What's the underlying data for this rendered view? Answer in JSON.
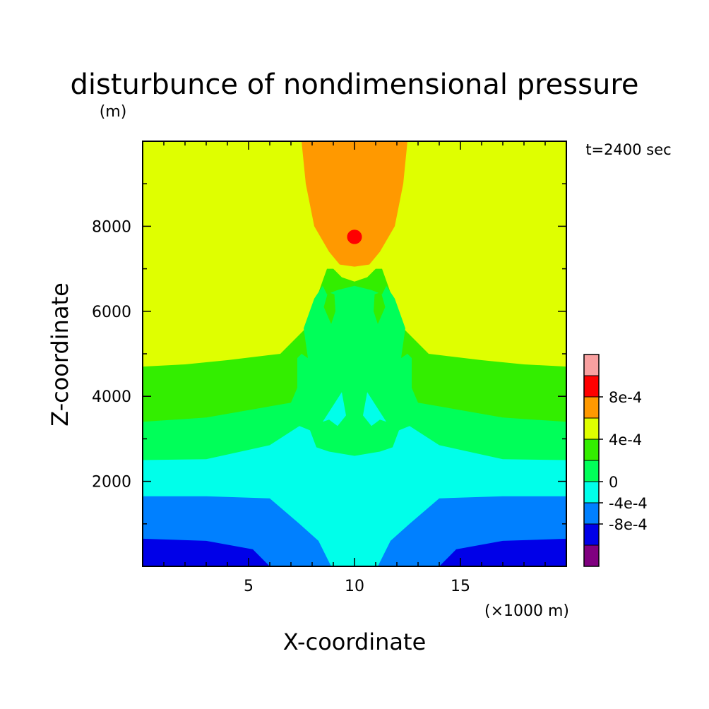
{
  "chart_data": {
    "type": "heatmap",
    "title": "disturbunce of nondimensional pressure",
    "y_unit": "(m)",
    "x_unit": "(×1000 m)",
    "xlabel": "X-coordinate",
    "ylabel": "Z-coordinate",
    "time_label": "t=2400 sec",
    "xlim": [
      0,
      20
    ],
    "ylim": [
      0,
      10000
    ],
    "x_ticks": [
      {
        "value": 5,
        "label": "5"
      },
      {
        "value": 10,
        "label": "10"
      },
      {
        "value": 15,
        "label": "15"
      }
    ],
    "y_ticks": [
      {
        "value": 2000,
        "label": "2000"
      },
      {
        "value": 4000,
        "label": "4000"
      },
      {
        "value": 6000,
        "label": "6000"
      },
      {
        "value": 8000,
        "label": "8000"
      }
    ],
    "colorbar": {
      "levels": [
        {
          "color": "#800080"
        },
        {
          "color": "#0000e8"
        },
        {
          "color": "#0080ff"
        },
        {
          "color": "#00ffea"
        },
        {
          "color": "#00ff59"
        },
        {
          "color": "#33ee00"
        },
        {
          "color": "#dfff00"
        },
        {
          "color": "#ff9900"
        },
        {
          "color": "#ff0000"
        },
        {
          "color": "#f9a0a0"
        }
      ],
      "ticks": [
        {
          "boundary": 2,
          "label": "-8e-4"
        },
        {
          "boundary": 3,
          "label": "-4e-4"
        },
        {
          "boundary": 4,
          "label": "0"
        },
        {
          "boundary": 6,
          "label": "4e-4"
        },
        {
          "boundary": 8,
          "label": "8e-4"
        }
      ]
    },
    "regions": [
      {
        "level": 6,
        "points": [
          [
            0,
            0
          ],
          [
            20,
            0
          ],
          [
            20,
            10000
          ],
          [
            0,
            10000
          ]
        ]
      },
      {
        "level": 7,
        "points": [
          [
            7.5,
            10000
          ],
          [
            12.5,
            10000
          ],
          [
            12.3,
            9000
          ],
          [
            11.9,
            8000
          ],
          [
            11.2,
            7400
          ],
          [
            10.7,
            7100
          ],
          [
            10,
            7050
          ],
          [
            9.3,
            7100
          ],
          [
            8.8,
            7400
          ],
          [
            8.1,
            8000
          ],
          [
            7.7,
            9000
          ]
        ]
      },
      {
        "level": 8,
        "cx": 10.0,
        "cy": 7750,
        "rx": 0.35,
        "ry": 170
      },
      {
        "level": 5,
        "points": [
          [
            0,
            0
          ],
          [
            20,
            0
          ],
          [
            20,
            4700
          ],
          [
            18,
            4750
          ],
          [
            16,
            4850
          ],
          [
            13.5,
            5000
          ],
          [
            12.3,
            5600
          ],
          [
            11.3,
            7000
          ],
          [
            11,
            7000
          ],
          [
            10.6,
            6800
          ],
          [
            10,
            6700
          ],
          [
            9.4,
            6800
          ],
          [
            9,
            7000
          ],
          [
            8.7,
            7000
          ],
          [
            7.7,
            5600
          ],
          [
            6.5,
            5000
          ],
          [
            4,
            4850
          ],
          [
            2,
            4750
          ],
          [
            0,
            4700
          ]
        ]
      },
      {
        "level": 4,
        "points": [
          [
            0,
            0
          ],
          [
            20,
            0
          ],
          [
            20,
            3400
          ],
          [
            17,
            3500
          ],
          [
            13,
            3850
          ],
          [
            12.7,
            4200
          ],
          [
            12.7,
            4900
          ],
          [
            12.5,
            5000
          ],
          [
            12.2,
            4900
          ],
          [
            12.4,
            5600
          ],
          [
            11.9,
            6300
          ],
          [
            11.5,
            6600
          ],
          [
            11.3,
            6400
          ],
          [
            10.8,
            6500
          ],
          [
            10,
            6600
          ],
          [
            9.2,
            6500
          ],
          [
            8.7,
            6400
          ],
          [
            8.5,
            6600
          ],
          [
            8.1,
            6300
          ],
          [
            7.6,
            5600
          ],
          [
            7.8,
            4900
          ],
          [
            7.5,
            5000
          ],
          [
            7.3,
            4900
          ],
          [
            7.3,
            4200
          ],
          [
            7,
            3850
          ],
          [
            3,
            3500
          ],
          [
            0,
            3400
          ]
        ]
      },
      {
        "level": 5,
        "points": [
          [
            8.55,
            6100
          ],
          [
            8.75,
            6450
          ],
          [
            9.05,
            6400
          ],
          [
            9.1,
            6000
          ],
          [
            8.9,
            5700
          ]
        ]
      },
      {
        "level": 5,
        "points": [
          [
            11.45,
            6100
          ],
          [
            11.25,
            6450
          ],
          [
            10.95,
            6400
          ],
          [
            10.9,
            6000
          ],
          [
            11.1,
            5700
          ]
        ]
      },
      {
        "level": 3,
        "points": [
          [
            0,
            0
          ],
          [
            20,
            0
          ],
          [
            20,
            2500
          ],
          [
            17,
            2520
          ],
          [
            14,
            2850
          ],
          [
            12.6,
            3300
          ],
          [
            12.1,
            3200
          ],
          [
            11.8,
            2800
          ],
          [
            11.2,
            2700
          ],
          [
            10,
            2600
          ],
          [
            8.8,
            2700
          ],
          [
            8.2,
            2800
          ],
          [
            7.9,
            3200
          ],
          [
            7.4,
            3300
          ],
          [
            6,
            2850
          ],
          [
            3,
            2520
          ],
          [
            0,
            2500
          ]
        ]
      },
      {
        "level": 3,
        "points": [
          [
            8.5,
            3400
          ],
          [
            9.4,
            4100
          ],
          [
            9.6,
            3550
          ],
          [
            9.2,
            3300
          ],
          [
            8.8,
            3450
          ]
        ]
      },
      {
        "level": 3,
        "points": [
          [
            11.5,
            3400
          ],
          [
            10.6,
            4100
          ],
          [
            10.4,
            3550
          ],
          [
            10.8,
            3300
          ],
          [
            11.2,
            3450
          ]
        ]
      },
      {
        "level": 2,
        "points": [
          [
            0,
            0
          ],
          [
            8.9,
            0
          ],
          [
            8.7,
            200
          ],
          [
            8.3,
            600
          ],
          [
            7.4,
            1000
          ],
          [
            6.7,
            1300
          ],
          [
            6,
            1600
          ],
          [
            3,
            1650
          ],
          [
            0,
            1650
          ]
        ]
      },
      {
        "level": 2,
        "points": [
          [
            20,
            0
          ],
          [
            11.1,
            0
          ],
          [
            11.3,
            200
          ],
          [
            11.7,
            600
          ],
          [
            12.6,
            1000
          ],
          [
            13.3,
            1300
          ],
          [
            14,
            1600
          ],
          [
            17,
            1650
          ],
          [
            20,
            1650
          ]
        ]
      },
      {
        "level": 1,
        "points": [
          [
            0,
            0
          ],
          [
            6.0,
            0
          ],
          [
            5.2,
            400
          ],
          [
            3,
            600
          ],
          [
            0,
            650
          ]
        ]
      },
      {
        "level": 1,
        "points": [
          [
            20,
            0
          ],
          [
            14.0,
            0
          ],
          [
            14.8,
            400
          ],
          [
            17,
            600
          ],
          [
            20,
            650
          ]
        ]
      }
    ]
  }
}
